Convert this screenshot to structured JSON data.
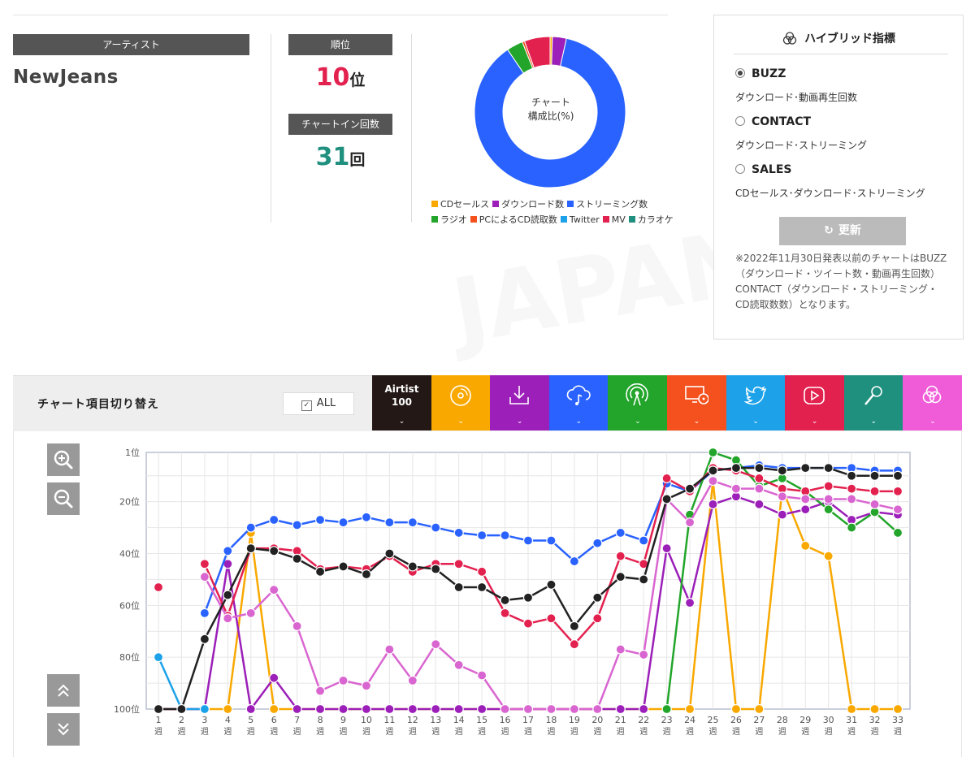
{
  "artist": {
    "label": "アーティスト",
    "name": "NewJeans"
  },
  "rank": {
    "label": "順位",
    "value": "10",
    "unit": "位"
  },
  "chart_in": {
    "label": "チャートイン回数",
    "value": "31",
    "unit": "回"
  },
  "donut": {
    "center_line1": "チャート",
    "center_line2": "構成比(%)",
    "segments": [
      {
        "name": "CDセールス",
        "value": 0.5,
        "color": "#f9a800"
      },
      {
        "name": "ダウンロード数",
        "value": 3,
        "color": "#9b1fb8"
      },
      {
        "name": "ストリーミング数",
        "value": 87,
        "color": "#2962ff"
      },
      {
        "name": "ラジオ",
        "value": 3.5,
        "color": "#22a52a"
      },
      {
        "name": "PCによるCD読取数",
        "value": 0.5,
        "color": "#f4511e"
      },
      {
        "name": "Twitter",
        "value": 0,
        "color": "#1da1e8"
      },
      {
        "name": "MV",
        "value": 5.5,
        "color": "#e3214f"
      },
      {
        "name": "カラオケ",
        "value": 0,
        "color": "#1f8f7e"
      }
    ]
  },
  "legend_row1": [
    "CDセールス",
    "ダウンロード数",
    "ストリーミング数"
  ],
  "legend_row2": [
    "ラジオ",
    "PCによるCD読取数",
    "Twitter",
    "MV",
    "カラオケ"
  ],
  "hybrid": {
    "title": "ハイブリッド指標",
    "options": [
      {
        "name": "BUZZ",
        "desc": "ダウンロード･動画再生回数",
        "selected": true
      },
      {
        "name": "CONTACT",
        "desc": "ダウンロード･ストリーミング",
        "selected": false
      },
      {
        "name": "SALES",
        "desc": "CDセールス･ダウンロード･ストリーミング",
        "selected": false
      }
    ],
    "refresh_label": "更新",
    "note": "※2022年11月30日発表以前のチャートはBUZZ（ダウンロード・ツイート数・動画再生回数）CONTACT（ダウンロード・ストリーミング・CD読取数数）となります。"
  },
  "panel": {
    "title": "チャート項目切り替え",
    "all_label": "ALL",
    "tabs": [
      {
        "name": "airtist",
        "text1": "Airtist",
        "text2": "100",
        "color": "#231815",
        "icon": "text"
      },
      {
        "name": "cd-sales",
        "color": "#f9a800",
        "icon": "cd-icon"
      },
      {
        "name": "download",
        "color": "#9b1fb8",
        "icon": "download-icon"
      },
      {
        "name": "streaming",
        "color": "#2962ff",
        "icon": "cloud-music-icon"
      },
      {
        "name": "radio",
        "color": "#22a52a",
        "icon": "radio-icon"
      },
      {
        "name": "pc-cd-read",
        "color": "#f4511e",
        "icon": "pc-cd-icon"
      },
      {
        "name": "twitter",
        "color": "#1da1e8",
        "icon": "twitter-icon"
      },
      {
        "name": "mv",
        "color": "#e3214f",
        "icon": "play-icon"
      },
      {
        "name": "karaoke",
        "color": "#1f8f7e",
        "icon": "mic-icon"
      },
      {
        "name": "hybrid",
        "color": "#f05bd8",
        "icon": "hybrid-icon"
      }
    ]
  },
  "chart_data": {
    "type": "line",
    "y_inverted": true,
    "ylim": [
      100,
      1
    ],
    "y_ticks": [
      "1位",
      "20位",
      "40位",
      "60位",
      "80位",
      "100位"
    ],
    "y_tick_values": [
      1,
      20,
      40,
      60,
      80,
      100
    ],
    "week_unit": "週",
    "x": [
      1,
      2,
      3,
      4,
      5,
      6,
      7,
      8,
      9,
      10,
      11,
      12,
      13,
      14,
      15,
      16,
      17,
      18,
      19,
      20,
      21,
      22,
      23,
      24,
      25,
      26,
      27,
      28,
      29,
      30,
      31,
      32,
      33
    ],
    "grid": true,
    "series": [
      {
        "key": "cd",
        "color": "#f9a800",
        "values": [
          100,
          100,
          100,
          100,
          32,
          100,
          100,
          100,
          100,
          100,
          100,
          100,
          100,
          100,
          100,
          100,
          100,
          100,
          100,
          100,
          100,
          100,
          100,
          100,
          12,
          100,
          100,
          15,
          37,
          41,
          100,
          100,
          100
        ]
      },
      {
        "key": "download",
        "color": "#9b1fb8",
        "values": [
          100,
          100,
          100,
          44,
          100,
          88,
          100,
          100,
          100,
          100,
          100,
          100,
          100,
          100,
          100,
          100,
          100,
          100,
          100,
          100,
          100,
          100,
          38,
          59,
          21,
          18,
          21,
          25,
          23,
          20,
          27,
          24,
          25
        ]
      },
      {
        "key": "streaming",
        "color": "#2962ff",
        "values": [
          null,
          null,
          63,
          39,
          30,
          27,
          29,
          27,
          28,
          26,
          28,
          28,
          30,
          32,
          33,
          33,
          35,
          35,
          43,
          36,
          32,
          35,
          13,
          16,
          8,
          7,
          6,
          7,
          7,
          7,
          7,
          8,
          8
        ]
      },
      {
        "key": "radio",
        "color": "#22a52a",
        "values": [
          null,
          null,
          null,
          null,
          null,
          null,
          null,
          null,
          null,
          null,
          null,
          null,
          null,
          null,
          null,
          null,
          null,
          null,
          null,
          null,
          null,
          null,
          100,
          25,
          1,
          4,
          14,
          11,
          16,
          23,
          30,
          24,
          32
        ]
      },
      {
        "key": "twitter",
        "color": "#1da1e8",
        "values": [
          80,
          100,
          100,
          null,
          null,
          null,
          null,
          null,
          null,
          null,
          null,
          null,
          null,
          null,
          null,
          null,
          null,
          null,
          null,
          null,
          null,
          null,
          null,
          null,
          null,
          null,
          null,
          null,
          null,
          null,
          null,
          null,
          null
        ]
      },
      {
        "key": "mv",
        "color": "#e3214f",
        "values": [
          53,
          null,
          44,
          64,
          38,
          38,
          39,
          46,
          45,
          46,
          41,
          47,
          44,
          44,
          47,
          63,
          67,
          65,
          75,
          65,
          41,
          44,
          11,
          16,
          7,
          8,
          11,
          15,
          16,
          14,
          15,
          16,
          16
        ]
      },
      {
        "key": "hybrid",
        "color": "#d966d0",
        "values": [
          null,
          null,
          49,
          65,
          63,
          54,
          68,
          93,
          89,
          91,
          77,
          89,
          75,
          83,
          87,
          100,
          100,
          100,
          100,
          100,
          77,
          79,
          19,
          28,
          12,
          15,
          15,
          18,
          19,
          19,
          19,
          21,
          23
        ]
      },
      {
        "key": "airtist",
        "color": "#222222",
        "values": [
          100,
          100,
          73,
          56,
          38,
          39,
          42,
          47,
          45,
          48,
          40,
          45,
          46,
          53,
          53,
          58,
          57,
          52,
          68,
          57,
          49,
          50,
          19,
          15,
          8,
          7,
          7,
          8,
          7,
          7,
          10,
          10,
          10
        ]
      }
    ]
  }
}
